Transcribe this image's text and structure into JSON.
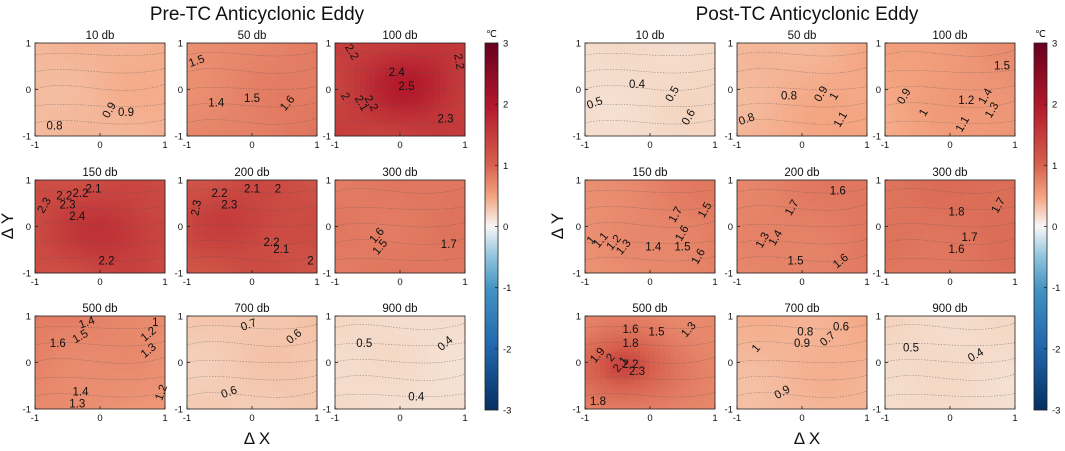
{
  "chart_data": [
    {
      "type": "contour",
      "title": "Pre-TC Anticyclonic Eddy",
      "xlabel": "Δ X",
      "ylabel": "Δ Y",
      "xlim": [
        -1,
        1
      ],
      "ylim": [
        -1,
        1
      ],
      "xticks": [
        "-1",
        "0",
        "1"
      ],
      "yticks": [
        "-1",
        "0",
        "1"
      ],
      "colorbar": {
        "unit": "℃",
        "min": -3,
        "max": 3,
        "ticks": [
          "3",
          "2",
          "1",
          "0",
          "-1",
          "-2",
          "-3"
        ]
      },
      "panels": [
        {
          "depth": "10 db",
          "mean": 0.85,
          "grad": [
            0.06,
            0.02
          ],
          "labels": [
            {
              "t": "0.9",
              "x": 0.15,
              "y": -0.45,
              "r": -60
            },
            {
              "t": "0.9",
              "x": 0.4,
              "y": -0.5,
              "r": 0
            },
            {
              "t": "0.8",
              "x": -0.7,
              "y": -0.8,
              "r": 0
            }
          ]
        },
        {
          "depth": "50 db",
          "mean": 1.5,
          "grad": [
            0.15,
            -0.05
          ],
          "labels": [
            {
              "t": "1.5",
              "x": -0.85,
              "y": 0.6,
              "r": -20
            },
            {
              "t": "1.4",
              "x": -0.55,
              "y": -0.3,
              "r": 0
            },
            {
              "t": "1.5",
              "x": 0.0,
              "y": -0.2,
              "r": 0
            },
            {
              "t": "1.6",
              "x": 0.55,
              "y": -0.3,
              "r": -50
            }
          ]
        },
        {
          "depth": "100 db",
          "mean": 2.3,
          "grad": [
            0.0,
            0.0
          ],
          "hot": [
            0.2,
            0.1,
            0.25
          ],
          "labels": [
            {
              "t": "2.2",
              "x": -0.75,
              "y": 0.8,
              "r": 60
            },
            {
              "t": "2.4",
              "x": -0.05,
              "y": 0.35,
              "r": 0
            },
            {
              "t": "2.5",
              "x": 0.1,
              "y": 0.05,
              "r": 0
            },
            {
              "t": "2",
              "x": -0.85,
              "y": -0.15,
              "r": 60
            },
            {
              "t": "2.1",
              "x": -0.6,
              "y": -0.3,
              "r": 60
            },
            {
              "t": "2.2",
              "x": -0.45,
              "y": -0.3,
              "r": 60
            },
            {
              "t": "2.2",
              "x": 0.9,
              "y": 0.6,
              "r": 80
            },
            {
              "t": "2.3",
              "x": 0.7,
              "y": -0.65,
              "r": 0
            }
          ]
        },
        {
          "depth": "150 db",
          "mean": 2.2,
          "grad": [
            0.0,
            0.0
          ],
          "hot": [
            0.2,
            -0.1,
            0.2
          ],
          "labels": [
            {
              "t": "2.1",
              "x": -0.1,
              "y": 0.8,
              "r": 0
            },
            {
              "t": "2.2",
              "x": -0.3,
              "y": 0.7,
              "r": 0
            },
            {
              "t": "2.2",
              "x": -0.55,
              "y": 0.65,
              "r": 0
            },
            {
              "t": "2.3",
              "x": -0.5,
              "y": 0.45,
              "r": 0
            },
            {
              "t": "2.3",
              "x": -0.85,
              "y": 0.45,
              "r": -60
            },
            {
              "t": "2.4",
              "x": -0.35,
              "y": 0.2,
              "r": 0
            },
            {
              "t": "2.2",
              "x": 0.1,
              "y": -0.75,
              "r": 0
            }
          ]
        },
        {
          "depth": "200 db",
          "mean": 2.15,
          "grad": [
            0.0,
            0.0
          ],
          "hot": [
            -0.1,
            0.1,
            0.15
          ],
          "labels": [
            {
              "t": "2.2",
              "x": -0.5,
              "y": 0.7,
              "r": 0
            },
            {
              "t": "2.1",
              "x": 0.0,
              "y": 0.8,
              "r": 0
            },
            {
              "t": "2",
              "x": 0.4,
              "y": 0.8,
              "r": 0
            },
            {
              "t": "2.3",
              "x": -0.35,
              "y": 0.45,
              "r": 0
            },
            {
              "t": "2.3",
              "x": -0.85,
              "y": 0.4,
              "r": -80
            },
            {
              "t": "2.2",
              "x": 0.3,
              "y": -0.35,
              "r": 0
            },
            {
              "t": "2.1",
              "x": 0.45,
              "y": -0.5,
              "r": 0
            },
            {
              "t": "2",
              "x": 0.9,
              "y": -0.75,
              "r": 0
            }
          ]
        },
        {
          "depth": "300 db",
          "mean": 1.65,
          "grad": [
            0.04,
            0.0
          ],
          "labels": [
            {
              "t": "1.6",
              "x": -0.35,
              "y": -0.2,
              "r": -50
            },
            {
              "t": "1.5",
              "x": -0.3,
              "y": -0.45,
              "r": -50
            },
            {
              "t": "1.7",
              "x": 0.75,
              "y": -0.4,
              "r": 0
            }
          ]
        },
        {
          "depth": "500 db",
          "mean": 1.4,
          "grad": [
            -0.1,
            0.1
          ],
          "labels": [
            {
              "t": "1.4",
              "x": -0.2,
              "y": 0.85,
              "r": -20
            },
            {
              "t": "1.5",
              "x": -0.3,
              "y": 0.55,
              "r": -30
            },
            {
              "t": "1.6",
              "x": -0.65,
              "y": 0.4,
              "r": 0
            },
            {
              "t": "1.2",
              "x": 0.75,
              "y": 0.6,
              "r": -40
            },
            {
              "t": "1.3",
              "x": 0.75,
              "y": 0.25,
              "r": -40
            },
            {
              "t": "1",
              "x": 0.85,
              "y": 0.85,
              "r": 0
            },
            {
              "t": "1.4",
              "x": -0.3,
              "y": -0.65,
              "r": 0
            },
            {
              "t": "1.3",
              "x": -0.35,
              "y": -0.9,
              "r": 0
            },
            {
              "t": "1.2",
              "x": 0.95,
              "y": -0.65,
              "r": -70
            }
          ]
        },
        {
          "depth": "700 db",
          "mean": 0.65,
          "grad": [
            0.03,
            0.03
          ],
          "labels": [
            {
              "t": "0.7",
              "x": -0.05,
              "y": 0.8,
              "r": -20
            },
            {
              "t": "0.6",
              "x": 0.65,
              "y": 0.55,
              "r": -40
            },
            {
              "t": "0.6",
              "x": -0.35,
              "y": -0.65,
              "r": -20
            }
          ]
        },
        {
          "depth": "900 db",
          "mean": 0.42,
          "grad": [
            -0.05,
            0.02
          ],
          "labels": [
            {
              "t": "0.5",
              "x": -0.55,
              "y": 0.4,
              "r": 0
            },
            {
              "t": "0.4",
              "x": 0.7,
              "y": 0.4,
              "r": -40
            },
            {
              "t": "0.4",
              "x": 0.25,
              "y": -0.75,
              "r": 0
            }
          ]
        }
      ]
    },
    {
      "type": "contour",
      "title": "Post-TC Anticyclonic Eddy",
      "xlabel": "Δ X",
      "ylabel": "Δ Y",
      "xlim": [
        -1,
        1
      ],
      "ylim": [
        -1,
        1
      ],
      "xticks": [
        "-1",
        "0",
        "1"
      ],
      "yticks": [
        "-1",
        "0",
        "1"
      ],
      "colorbar": {
        "unit": "℃",
        "min": -3,
        "max": 3,
        "ticks": [
          "3",
          "2",
          "1",
          "0",
          "-1",
          "-2",
          "-3"
        ]
      },
      "panels": [
        {
          "depth": "10 db",
          "mean": 0.45,
          "grad": [
            0.05,
            0.0
          ],
          "labels": [
            {
              "t": "0.5",
              "x": -0.85,
              "y": -0.3,
              "r": -20
            },
            {
              "t": "0.4",
              "x": -0.2,
              "y": 0.1,
              "r": 0
            },
            {
              "t": "0.5",
              "x": 0.35,
              "y": -0.1,
              "r": -60
            },
            {
              "t": "0.6",
              "x": 0.6,
              "y": -0.6,
              "r": -60
            }
          ]
        },
        {
          "depth": "50 db",
          "mean": 0.9,
          "grad": [
            0.1,
            -0.05
          ],
          "labels": [
            {
              "t": "0.8",
              "x": -0.85,
              "y": -0.65,
              "r": -20
            },
            {
              "t": "0.8",
              "x": -0.2,
              "y": -0.15,
              "r": 0
            },
            {
              "t": "0.9",
              "x": 0.3,
              "y": -0.1,
              "r": -60
            },
            {
              "t": "1",
              "x": 0.5,
              "y": -0.15,
              "r": -60
            },
            {
              "t": "1.1",
              "x": 0.6,
              "y": -0.65,
              "r": -60
            }
          ]
        },
        {
          "depth": "100 db",
          "mean": 1.15,
          "grad": [
            0.15,
            0.05
          ],
          "labels": [
            {
              "t": "1.5",
              "x": 0.8,
              "y": 0.5,
              "r": 0
            },
            {
              "t": "0.9",
              "x": -0.7,
              "y": -0.15,
              "r": -60
            },
            {
              "t": "1",
              "x": -0.4,
              "y": -0.5,
              "r": -60
            },
            {
              "t": "1.2",
              "x": 0.25,
              "y": -0.25,
              "r": 0
            },
            {
              "t": "1.4",
              "x": 0.55,
              "y": -0.15,
              "r": -60
            },
            {
              "t": "1.3",
              "x": 0.65,
              "y": -0.45,
              "r": -60
            },
            {
              "t": "1.1",
              "x": 0.2,
              "y": -0.75,
              "r": -60
            }
          ]
        },
        {
          "depth": "150 db",
          "mean": 1.45,
          "grad": [
            0.15,
            0.05
          ],
          "labels": [
            {
              "t": "1.7",
              "x": 0.4,
              "y": 0.25,
              "r": -60
            },
            {
              "t": "1.5",
              "x": 0.85,
              "y": 0.35,
              "r": -60
            },
            {
              "t": "1.6",
              "x": 0.5,
              "y": -0.15,
              "r": -60
            },
            {
              "t": "1.4",
              "x": 0.05,
              "y": -0.45,
              "r": 0
            },
            {
              "t": "1.5",
              "x": 0.5,
              "y": -0.45,
              "r": 0
            },
            {
              "t": "1.6",
              "x": 0.75,
              "y": -0.65,
              "r": -60
            },
            {
              "t": "1",
              "x": -0.9,
              "y": -0.3,
              "r": -50
            },
            {
              "t": "1.1",
              "x": -0.75,
              "y": -0.3,
              "r": -50
            },
            {
              "t": "1.2",
              "x": -0.55,
              "y": -0.35,
              "r": -50
            },
            {
              "t": "1.3",
              "x": -0.4,
              "y": -0.45,
              "r": -50
            }
          ]
        },
        {
          "depth": "200 db",
          "mean": 1.55,
          "grad": [
            0.1,
            0.05
          ],
          "labels": [
            {
              "t": "1.6",
              "x": 0.55,
              "y": 0.75,
              "r": 0
            },
            {
              "t": "1.7",
              "x": -0.15,
              "y": 0.4,
              "r": -60
            },
            {
              "t": "1.3",
              "x": -0.6,
              "y": -0.3,
              "r": -60
            },
            {
              "t": "1.4",
              "x": -0.4,
              "y": -0.25,
              "r": -60
            },
            {
              "t": "1.5",
              "x": -0.1,
              "y": -0.75,
              "r": 0
            },
            {
              "t": "1.6",
              "x": 0.6,
              "y": -0.75,
              "r": -40
            }
          ]
        },
        {
          "depth": "300 db",
          "mean": 1.75,
          "grad": [
            0.05,
            0.05
          ],
          "labels": [
            {
              "t": "1.8",
              "x": 0.1,
              "y": 0.3,
              "r": 0
            },
            {
              "t": "1.7",
              "x": 0.75,
              "y": 0.45,
              "r": -60
            },
            {
              "t": "1.7",
              "x": 0.3,
              "y": -0.25,
              "r": 0
            },
            {
              "t": "1.6",
              "x": 0.1,
              "y": -0.5,
              "r": 0
            }
          ]
        },
        {
          "depth": "500 db",
          "mean": 1.7,
          "grad": [
            0.0,
            0.0
          ],
          "hot": [
            -0.4,
            -0.1,
            0.8
          ],
          "labels": [
            {
              "t": "1.6",
              "x": -0.3,
              "y": 0.7,
              "r": 0
            },
            {
              "t": "1.5",
              "x": 0.1,
              "y": 0.65,
              "r": 0
            },
            {
              "t": "1.3",
              "x": 0.6,
              "y": 0.7,
              "r": -50
            },
            {
              "t": "1.8",
              "x": -0.3,
              "y": 0.4,
              "r": 0
            },
            {
              "t": "1.9",
              "x": -0.8,
              "y": 0.15,
              "r": -50
            },
            {
              "t": "2",
              "x": -0.6,
              "y": 0.1,
              "r": -50
            },
            {
              "t": "2.1",
              "x": -0.45,
              "y": -0.05,
              "r": -50
            },
            {
              "t": "2.2",
              "x": -0.3,
              "y": -0.05,
              "r": 0
            },
            {
              "t": "2.3",
              "x": -0.2,
              "y": -0.2,
              "r": 0
            },
            {
              "t": "1.8",
              "x": -0.8,
              "y": -0.85,
              "r": 0
            }
          ]
        },
        {
          "depth": "700 db",
          "mean": 0.85,
          "grad": [
            0.05,
            0.05
          ],
          "labels": [
            {
              "t": "0.8",
              "x": 0.05,
              "y": 0.65,
              "r": 0
            },
            {
              "t": "0.6",
              "x": 0.6,
              "y": 0.75,
              "r": 0
            },
            {
              "t": "0.9",
              "x": 0.0,
              "y": 0.4,
              "r": 0
            },
            {
              "t": "0.7",
              "x": 0.4,
              "y": 0.5,
              "r": -40
            },
            {
              "t": "1",
              "x": -0.7,
              "y": 0.3,
              "r": -50
            },
            {
              "t": "0.9",
              "x": -0.3,
              "y": -0.65,
              "r": -30
            }
          ]
        },
        {
          "depth": "900 db",
          "mean": 0.45,
          "grad": [
            -0.03,
            0.02
          ],
          "labels": [
            {
              "t": "0.5",
              "x": -0.6,
              "y": 0.3,
              "r": 0
            },
            {
              "t": "0.4",
              "x": 0.4,
              "y": 0.15,
              "r": -30
            }
          ]
        }
      ]
    }
  ]
}
